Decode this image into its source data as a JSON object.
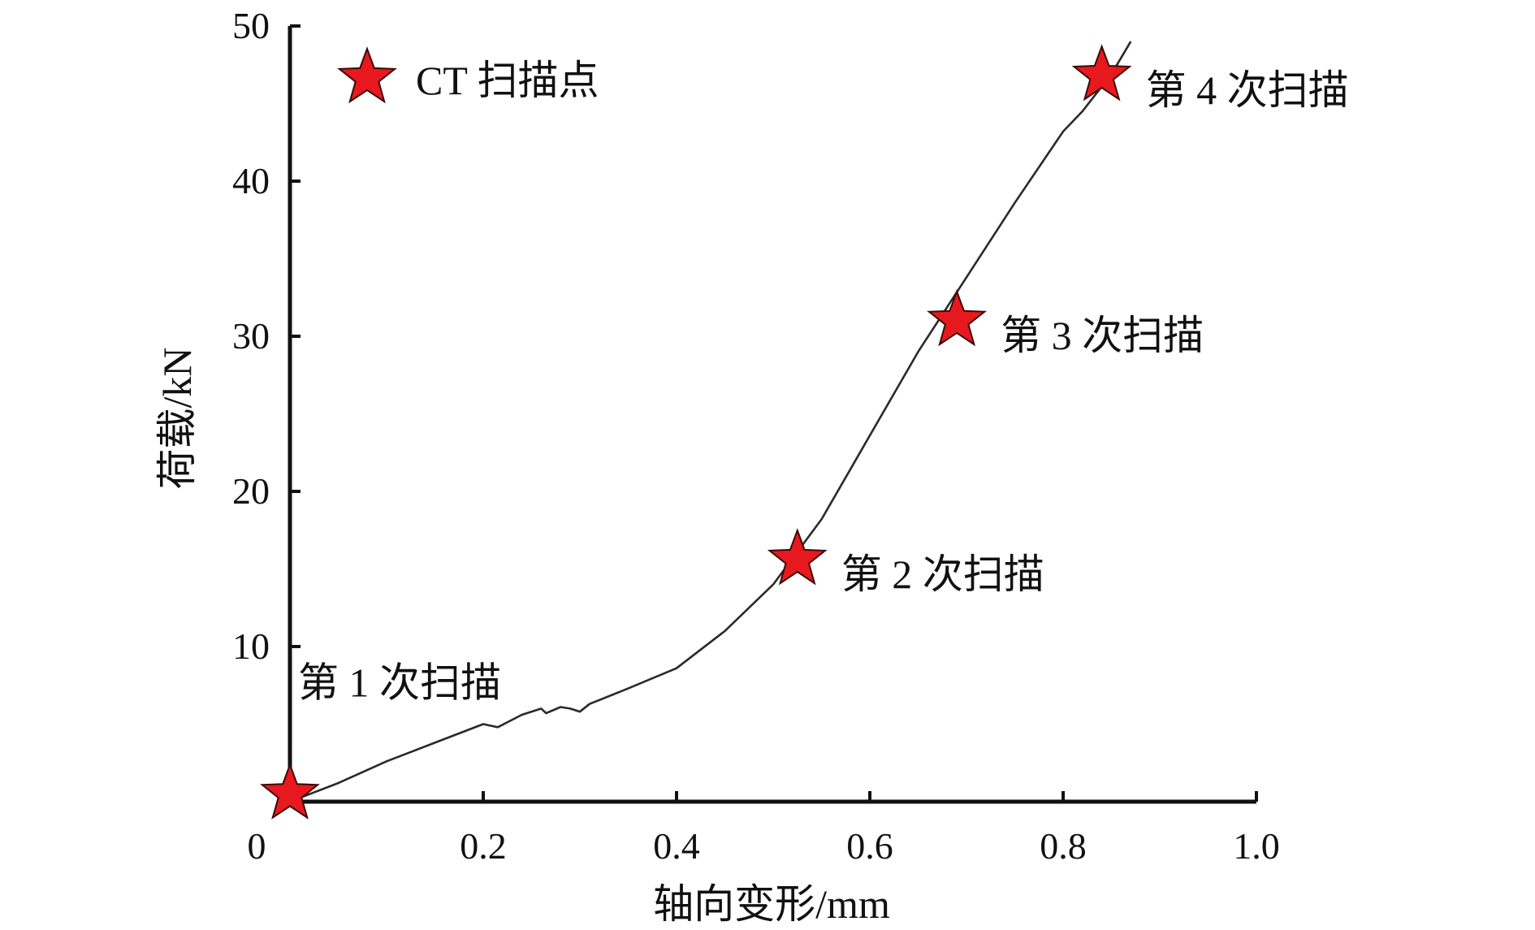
{
  "chart_data": {
    "type": "line",
    "xlabel": "轴向变形/mm",
    "ylabel": "荷载/kN",
    "xlim": [
      0,
      1.0
    ],
    "ylim": [
      0,
      50
    ],
    "x_ticks": [
      {
        "value": 0,
        "label": "0"
      },
      {
        "value": 0.2,
        "label": "0.2"
      },
      {
        "value": 0.4,
        "label": "0.4"
      },
      {
        "value": 0.6,
        "label": "0.6"
      },
      {
        "value": 0.8,
        "label": "0.8"
      },
      {
        "value": 1.0,
        "label": "1.0"
      }
    ],
    "y_ticks": [
      {
        "value": 10,
        "label": "10"
      },
      {
        "value": 20,
        "label": "20"
      },
      {
        "value": 30,
        "label": "30"
      },
      {
        "value": 40,
        "label": "40"
      },
      {
        "value": 50,
        "label": "50"
      }
    ],
    "grid": false,
    "series": [
      {
        "color": "#2a2a2a",
        "x": [
          0.0,
          0.05,
          0.1,
          0.15,
          0.2,
          0.215,
          0.24,
          0.26,
          0.265,
          0.28,
          0.29,
          0.3,
          0.31,
          0.35,
          0.4,
          0.45,
          0.5,
          0.55,
          0.6,
          0.65,
          0.7,
          0.75,
          0.8,
          0.82,
          0.85,
          0.87
        ],
        "y": [
          0.0,
          1.2,
          2.6,
          3.8,
          5.0,
          4.8,
          5.6,
          6.0,
          5.7,
          6.1,
          6.0,
          5.8,
          6.3,
          7.3,
          8.6,
          11.0,
          14.0,
          18.2,
          23.6,
          29.0,
          33.8,
          38.6,
          43.2,
          44.5,
          46.9,
          49.0
        ]
      }
    ],
    "scan_points": [
      {
        "x": 0.0,
        "y": 0.5,
        "label": "第 1 次扫描",
        "label_pos": "above"
      },
      {
        "x": 0.525,
        "y": 15.6,
        "label": "第 2 次扫描",
        "label_pos": "right"
      },
      {
        "x": 0.69,
        "y": 31.0,
        "label": "第 3 次扫描",
        "label_pos": "right"
      },
      {
        "x": 0.84,
        "y": 46.8,
        "label": "第 4 次扫描",
        "label_pos": "right"
      }
    ],
    "legend": {
      "label": "CT 扫描点",
      "marker": "star",
      "placement": "top-left"
    },
    "marker_color": "#e8191e",
    "marker_edge_color": "#3a0a0a"
  }
}
